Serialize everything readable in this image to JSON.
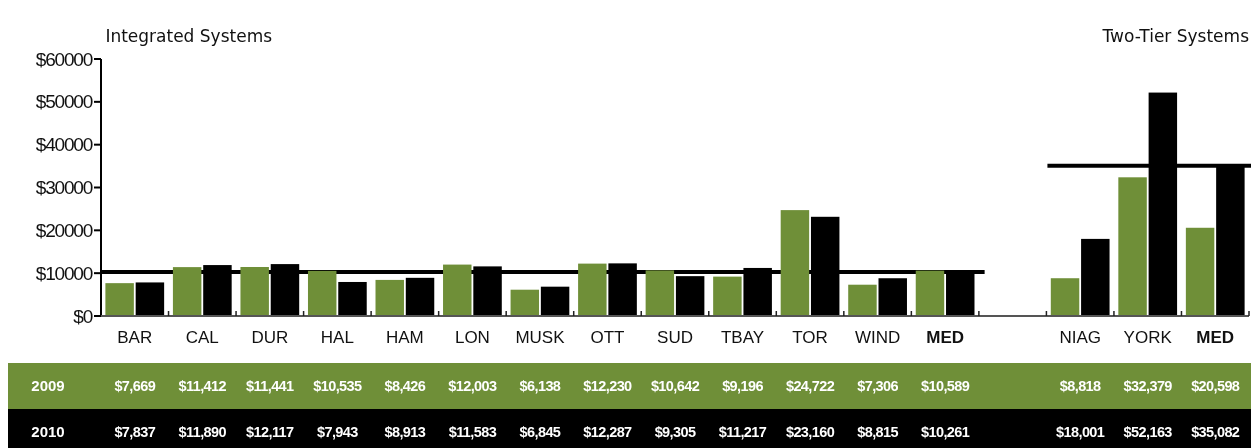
{
  "chart_data": {
    "type": "bar",
    "annotations": [
      "Integrated Systems",
      "Two-Tier Systems"
    ],
    "categories": [
      "BAR",
      "CAL",
      "DUR",
      "HAL",
      "HAM",
      "LON",
      "MUSK",
      "OTT",
      "SUD",
      "TBAY",
      "TOR",
      "WIND",
      "MED",
      null,
      "NIAG",
      "YORK",
      "MED"
    ],
    "series": [
      {
        "name": "2009",
        "color": "#6f8f38",
        "values": [
          7669,
          11412,
          11441,
          10535,
          8426,
          12003,
          6138,
          12230,
          10642,
          9196,
          24722,
          7306,
          10589,
          null,
          8818,
          32379,
          20598
        ],
        "value_labels": [
          "$7,669",
          "$11,412",
          "$11,441",
          "$10,535",
          "$8,426",
          "$12,003",
          "$6,138",
          "$12,230",
          "$10,642",
          "$9,196",
          "$24,722",
          "$7,306",
          "$10,589",
          null,
          "$8,818",
          "$32,379",
          "$20,598"
        ]
      },
      {
        "name": "2010",
        "color": "#000000",
        "values": [
          7837,
          11890,
          12117,
          7943,
          8913,
          11583,
          6845,
          12287,
          9305,
          11217,
          23160,
          8815,
          10261,
          null,
          18001,
          52163,
          35082
        ],
        "value_labels": [
          "$7,837",
          "$11,890",
          "$12,117",
          "$7,943",
          "$8,913",
          "$11,583",
          "$6,845",
          "$12,287",
          "$9,305",
          "$11,217",
          "$23,160",
          "$8,815",
          "$10,261",
          null,
          "$18,001",
          "$52,163",
          "$35,082"
        ]
      }
    ],
    "ylim": [
      0,
      60000
    ],
    "yticks": [
      {
        "value": 0,
        "label": "$0"
      },
      {
        "value": 10000,
        "label": "$10000"
      },
      {
        "value": 20000,
        "label": "$20000"
      },
      {
        "value": 30000,
        "label": "$30000"
      },
      {
        "value": 40000,
        "label": "$40000"
      },
      {
        "value": 50000,
        "label": "$50000"
      },
      {
        "value": 60000,
        "label": "$60000"
      }
    ],
    "ref_lines": [
      {
        "axis": "y",
        "value": 10261,
        "color": "#000000"
      },
      {
        "axis": "y",
        "value": 35082,
        "color": "#000000"
      }
    ],
    "grid": false
  }
}
